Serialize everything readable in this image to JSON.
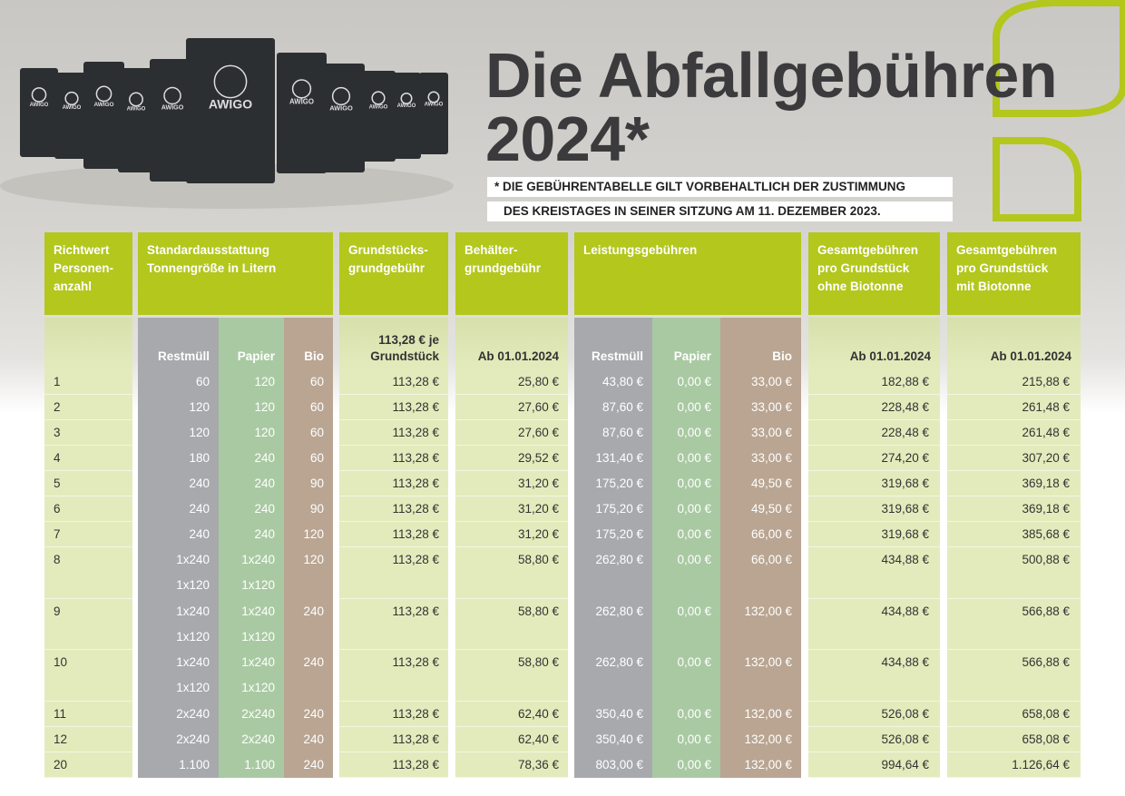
{
  "header": {
    "title_line1": "Die Abfallgebühren",
    "title_line2": "2024*",
    "note_line1": "* DIE GEBÜHRENTABELLE GILT VORBEHALTLICH DER ZUSTIMMUNG",
    "note_line2": "DES KREISTAGES IN SEINER SITZUNG AM 11. DEZEMBER 2023.",
    "bin_brand": "AWIGO"
  },
  "table": {
    "column_headers": [
      [
        "Richtwert",
        "Personen-",
        "anzahl"
      ],
      [
        "Standardausstattung",
        "Tonnengröße in Litern"
      ],
      [
        "Grundstücks-",
        "grundgebühr"
      ],
      [
        "Behälter-",
        "grundgebühr"
      ],
      [
        "Leistungsgebühren"
      ],
      [
        "Gesamtgebühren",
        "pro Grundstück",
        "ohne Biotonne"
      ],
      [
        "Gesamtgebühren",
        "pro Grundstück",
        "mit Biotonne"
      ]
    ],
    "sub_headers": [
      "Restmüll",
      "Papier",
      "Bio",
      [
        "113,28 € je",
        "Grundstück"
      ],
      "Ab 01.01.2024",
      "Restmüll",
      "Papier",
      "Bio",
      "Ab 01.01.2024",
      "Ab 01.01.2024"
    ],
    "rows": [
      [
        "1",
        "60",
        "120",
        "60",
        "113,28 €",
        "25,80 €",
        "43,80 €",
        "0,00 €",
        "33,00 €",
        "182,88 €",
        "215,88 €"
      ],
      [
        "2",
        "120",
        "120",
        "60",
        "113,28 €",
        "27,60 €",
        "87,60 €",
        "0,00 €",
        "33,00 €",
        "228,48 €",
        "261,48 €"
      ],
      [
        "3",
        "120",
        "120",
        "60",
        "113,28 €",
        "27,60 €",
        "87,60 €",
        "0,00 €",
        "33,00 €",
        "228,48 €",
        "261,48 €"
      ],
      [
        "4",
        "180",
        "240",
        "60",
        "113,28 €",
        "29,52 €",
        "131,40 €",
        "0,00 €",
        "33,00 €",
        "274,20 €",
        "307,20 €"
      ],
      [
        "5",
        "240",
        "240",
        "90",
        "113,28 €",
        "31,20 €",
        "175,20 €",
        "0,00 €",
        "49,50 €",
        "319,68 €",
        "369,18 €"
      ],
      [
        "6",
        "240",
        "240",
        "90",
        "113,28 €",
        "31,20 €",
        "175,20 €",
        "0,00 €",
        "49,50 €",
        "319,68 €",
        "369,18 €"
      ],
      [
        "7",
        "240",
        "240",
        "120",
        "113,28 €",
        "31,20 €",
        "175,20 €",
        "0,00 €",
        "66,00 €",
        "319,68 €",
        "385,68 €"
      ],
      [
        "8",
        [
          "1x240",
          "1x120"
        ],
        [
          "1x240",
          "1x120"
        ],
        "120",
        "113,28 €",
        "58,80 €",
        "262,80 €",
        "0,00 €",
        "66,00 €",
        "434,88 €",
        "500,88 €"
      ],
      [
        "9",
        [
          "1x240",
          "1x120"
        ],
        [
          "1x240",
          "1x120"
        ],
        "240",
        "113,28 €",
        "58,80 €",
        "262,80 €",
        "0,00 €",
        "132,00 €",
        "434,88 €",
        "566,88 €"
      ],
      [
        "10",
        [
          "1x240",
          "1x120"
        ],
        [
          "1x240",
          "1x120"
        ],
        "240",
        "113,28 €",
        "58,80 €",
        "262,80 €",
        "0,00 €",
        "132,00 €",
        "434,88 €",
        "566,88 €"
      ],
      [
        "11",
        "2x240",
        "2x240",
        "240",
        "113,28 €",
        "62,40 €",
        "350,40 €",
        "0,00 €",
        "132,00 €",
        "526,08 €",
        "658,08 €"
      ],
      [
        "12",
        "2x240",
        "2x240",
        "240",
        "113,28 €",
        "62,40 €",
        "350,40 €",
        "0,00 €",
        "132,00 €",
        "526,08 €",
        "658,08 €"
      ],
      [
        "20",
        "1.100",
        "1.100",
        "240",
        "113,28 €",
        "78,36 €",
        "803,00 €",
        "0,00 €",
        "132,00 €",
        "994,64 €",
        "1.126,64 €"
      ]
    ]
  }
}
